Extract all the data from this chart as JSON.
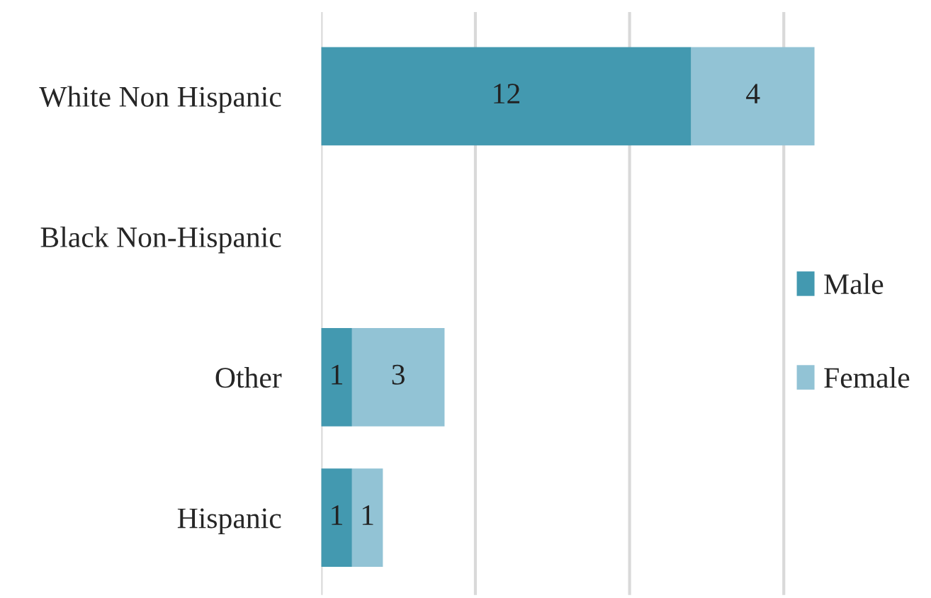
{
  "chart_data": {
    "type": "bar",
    "orientation": "horizontal",
    "stacked": true,
    "categories": [
      "White Non Hispanic",
      "Black Non-Hispanic",
      "Other",
      "Hispanic"
    ],
    "series": [
      {
        "name": "Male",
        "color": "#4399b0",
        "values": [
          12,
          null,
          1,
          1
        ]
      },
      {
        "name": "Female",
        "color": "#92c3d5",
        "values": [
          4,
          null,
          3,
          1
        ]
      }
    ],
    "xlim": [
      0,
      16
    ],
    "xticks": [
      {
        "value": 0,
        "label": null
      },
      {
        "value": 5,
        "label": null
      },
      {
        "value": 10,
        "label": null
      },
      {
        "value": 15,
        "label": null
      }
    ],
    "grid": "x",
    "tick_labels": "y",
    "legend": "right",
    "data_labels": true
  }
}
